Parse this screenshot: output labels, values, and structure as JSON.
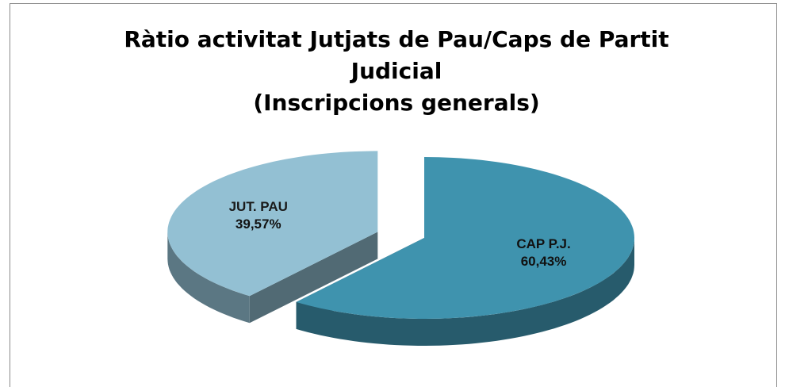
{
  "chart_data": {
    "type": "pie",
    "title": "Ràtio activitat Jutjats de Pau/Caps de Partit Judicial",
    "subtitle": "(Inscripcions generals)",
    "categories": [
      "JUT. PAU",
      "CAP P.J."
    ],
    "values": [
      39.57,
      60.43
    ],
    "value_labels": [
      "39,57%",
      "60,43%"
    ],
    "colors": [
      "#93c0d3",
      "#3f93ae"
    ]
  }
}
